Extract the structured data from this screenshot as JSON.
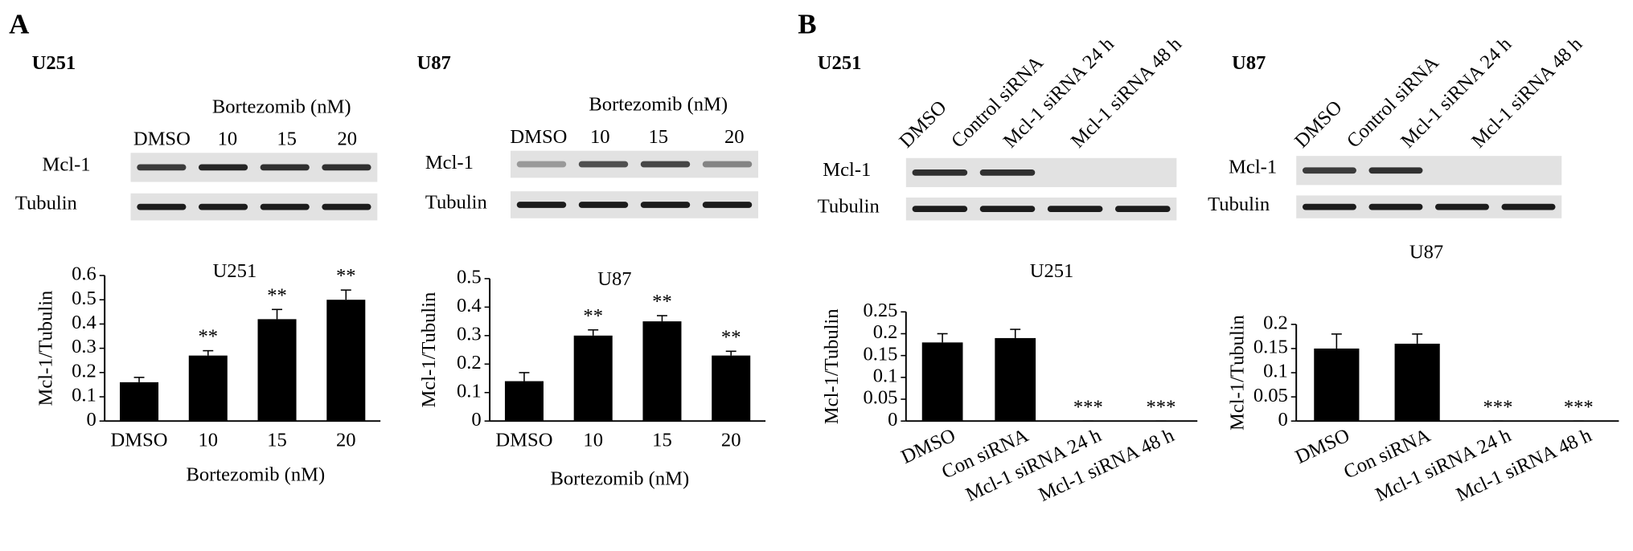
{
  "panel_labels": [
    "A",
    "B"
  ],
  "blots": [
    {
      "cell_line": "U251",
      "treatment": "Bortezomib (nM)",
      "lanes": [
        "DMSO",
        "10",
        "15",
        "20"
      ],
      "rows": [
        "Mcl-1",
        "Tubulin"
      ]
    },
    {
      "cell_line": "U87",
      "treatment": "Bortezomib (nM)",
      "lanes": [
        "DMSO",
        "10",
        "15",
        "20"
      ],
      "rows": [
        "Mcl-1",
        "Tubulin"
      ]
    },
    {
      "cell_line": "U251",
      "lanes": [
        "DMSO",
        "Control siRNA",
        "Mcl-1 siRNA 24 h",
        "Mcl-1 siRNA 48 h"
      ],
      "rows": [
        "Mcl-1",
        "Tubulin"
      ]
    },
    {
      "cell_line": "U87",
      "lanes": [
        "DMSO",
        "Control siRNA",
        "Mcl-1 siRNA 24 h",
        "Mcl-1 siRNA 48 h"
      ],
      "rows": [
        "Mcl-1",
        "Tubulin"
      ]
    }
  ],
  "chart_data": [
    {
      "type": "bar",
      "title": "U251",
      "y_label": "Mcl-1/Tubulin",
      "x_label": "Bortezomib (nM)",
      "categories": [
        "DMSO",
        "10",
        "15",
        "20"
      ],
      "values": [
        0.16,
        0.27,
        0.42,
        0.5
      ],
      "errors": [
        0.02,
        0.02,
        0.04,
        0.04
      ],
      "annotations": [
        null,
        "**",
        "**",
        "**"
      ],
      "color": "#000000",
      "ylim": [
        0,
        0.6
      ],
      "yticks": [
        0,
        0.1,
        0.2,
        0.3,
        0.4,
        0.5,
        0.6
      ]
    },
    {
      "type": "bar",
      "title": "U87",
      "y_label": "Mcl-1/Tubulin",
      "x_label": "Bortezomib (nM)",
      "categories": [
        "DMSO",
        "10",
        "15",
        "20"
      ],
      "values": [
        0.14,
        0.3,
        0.35,
        0.23
      ],
      "errors": [
        0.03,
        0.02,
        0.02,
        0.015
      ],
      "annotations": [
        null,
        "**",
        "**",
        "**"
      ],
      "color": "#000000",
      "ylim": [
        0,
        0.5
      ],
      "yticks": [
        0,
        0.1,
        0.2,
        0.3,
        0.4,
        0.5
      ]
    },
    {
      "type": "bar",
      "title": "U251",
      "y_label": "Mcl-1/Tubulin",
      "categories": [
        "DMSO",
        "Con  siRNA",
        "Mcl-1 siRNA 24 h",
        "Mcl-1 siRNA 48 h"
      ],
      "values": [
        0.18,
        0.19,
        0,
        0
      ],
      "errors": [
        0.02,
        0.02,
        0,
        0
      ],
      "annotations": [
        null,
        null,
        "***",
        "***"
      ],
      "color": "#000000",
      "ylim": [
        0,
        0.25
      ],
      "yticks": [
        0,
        0.05,
        0.1,
        0.15,
        0.2,
        0.25
      ]
    },
    {
      "type": "bar",
      "title": "U87",
      "y_label": "Mcl-1/Tubulin",
      "categories": [
        "DMSO",
        "Con  siRNA",
        "Mcl-1 siRNA 24 h",
        "Mcl-1 siRNA 48 h"
      ],
      "values": [
        0.15,
        0.16,
        0,
        0
      ],
      "errors": [
        0.03,
        0.02,
        0,
        0
      ],
      "annotations": [
        null,
        null,
        "***",
        "***"
      ],
      "color": "#000000",
      "ylim": [
        0,
        0.2
      ],
      "yticks": [
        0,
        0.05,
        0.1,
        0.15,
        0.2
      ]
    }
  ]
}
